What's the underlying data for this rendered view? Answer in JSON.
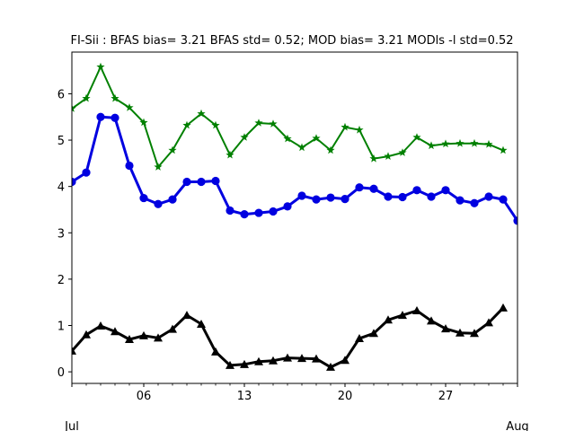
{
  "chart_data": {
    "type": "line",
    "title": "FI-Sii   : BFAS bias= 3.21 BFAS std= 0.52; MOD bias= 3.21 MODls -l std=0.52",
    "xlabel": "",
    "ylabel": "",
    "x": [
      "07-01",
      "07-02",
      "07-03",
      "07-04",
      "07-05",
      "07-06",
      "07-07",
      "07-08",
      "07-09",
      "07-10",
      "07-11",
      "07-12",
      "07-13",
      "07-14",
      "07-15",
      "07-16",
      "07-17",
      "07-18",
      "07-19",
      "07-20",
      "07-21",
      "07-22",
      "07-23",
      "07-24",
      "07-25",
      "07-26",
      "07-27",
      "07-28",
      "07-29",
      "07-30",
      "07-31",
      "08-01"
    ],
    "xlim": [
      "07-01",
      "08-01"
    ],
    "ylim": [
      -0.25,
      6.9
    ],
    "x_ticks": [
      {
        "date": "07-06",
        "label": "06"
      },
      {
        "date": "07-13",
        "label": "13"
      },
      {
        "date": "07-20",
        "label": "20"
      },
      {
        "date": "07-27",
        "label": "27"
      }
    ],
    "x_month_labels": [
      {
        "date": "07-01",
        "label": "Jul"
      },
      {
        "date": "08-01",
        "label": "Aug"
      }
    ],
    "y_ticks": [
      0,
      1,
      2,
      3,
      4,
      5,
      6
    ],
    "grid": false,
    "series": [
      {
        "color": "#008000",
        "marker": "star",
        "line_width": 2,
        "values": [
          5.68,
          5.9,
          6.58,
          5.9,
          5.7,
          5.38,
          4.42,
          4.78,
          5.32,
          5.57,
          5.32,
          4.68,
          5.06,
          5.37,
          5.35,
          5.03,
          4.84,
          5.04,
          4.78,
          5.28,
          5.22,
          4.6,
          4.65,
          4.73,
          5.06,
          4.88,
          4.92,
          4.93,
          4.93,
          4.91,
          4.78,
          null
        ]
      },
      {
        "color": "#0000e0",
        "marker": "circle",
        "line_width": 3,
        "values": [
          4.1,
          4.3,
          5.5,
          5.48,
          4.45,
          3.75,
          3.62,
          3.72,
          4.1,
          4.1,
          4.12,
          3.48,
          3.4,
          3.43,
          3.46,
          3.57,
          3.8,
          3.72,
          3.76,
          3.73,
          3.98,
          3.95,
          3.78,
          3.77,
          3.92,
          3.78,
          3.92,
          3.7,
          3.64,
          3.78,
          3.72,
          3.26
        ]
      },
      {
        "color": "#000000",
        "marker": "triangle",
        "line_width": 3,
        "values": [
          0.45,
          0.8,
          0.99,
          0.87,
          0.7,
          0.78,
          0.73,
          0.92,
          1.22,
          1.03,
          0.43,
          0.14,
          0.16,
          0.22,
          0.24,
          0.3,
          0.29,
          0.28,
          0.1,
          0.25,
          0.72,
          0.83,
          1.12,
          1.22,
          1.32,
          1.1,
          0.93,
          0.84,
          0.83,
          1.06,
          1.38,
          null
        ]
      }
    ]
  }
}
